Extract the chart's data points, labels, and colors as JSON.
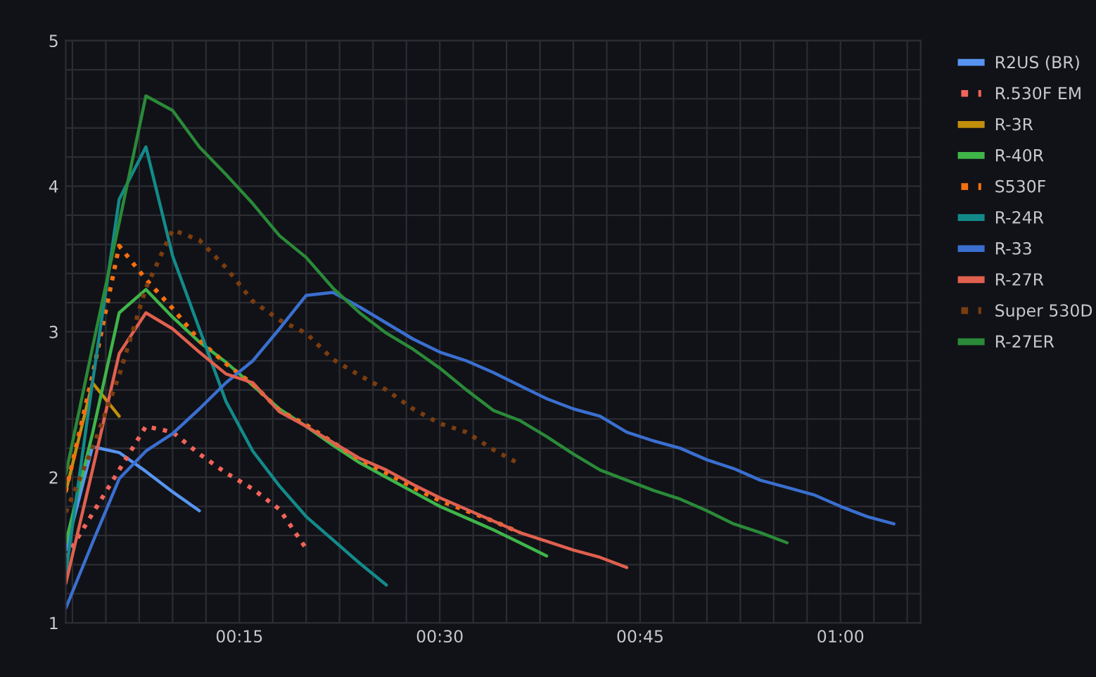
{
  "chart_data": {
    "type": "line",
    "xlim": [
      2,
      66
    ],
    "xticks": [
      {
        "value": 2.5,
        "label": null
      },
      {
        "value": 5,
        "label": null
      },
      {
        "value": 7.5,
        "label": null
      },
      {
        "value": 10,
        "label": null
      },
      {
        "value": 12.5,
        "label": null
      },
      {
        "value": 15,
        "label": "00:15"
      },
      {
        "value": 17.5,
        "label": null
      },
      {
        "value": 20,
        "label": null
      },
      {
        "value": 22.5,
        "label": null
      },
      {
        "value": 25,
        "label": null
      },
      {
        "value": 27.5,
        "label": null
      },
      {
        "value": 30,
        "label": "00:30"
      },
      {
        "value": 32.5,
        "label": null
      },
      {
        "value": 35,
        "label": null
      },
      {
        "value": 37.5,
        "label": null
      },
      {
        "value": 40,
        "label": null
      },
      {
        "value": 42.5,
        "label": null
      },
      {
        "value": 45,
        "label": "00:45"
      },
      {
        "value": 47.5,
        "label": null
      },
      {
        "value": 50,
        "label": null
      },
      {
        "value": 52.5,
        "label": null
      },
      {
        "value": 55,
        "label": null
      },
      {
        "value": 57.5,
        "label": null
      },
      {
        "value": 60,
        "label": "01:00"
      },
      {
        "value": 62.5,
        "label": null
      },
      {
        "value": 65,
        "label": null
      }
    ],
    "ylim": [
      1,
      5
    ],
    "yticks": [
      1,
      {
        "value": 1.2,
        "label": null
      },
      {
        "value": 1.4,
        "label": null
      },
      {
        "value": 1.6,
        "label": null
      },
      {
        "value": 1.8,
        "label": null
      },
      2,
      {
        "value": 2.2,
        "label": null
      },
      {
        "value": 2.4,
        "label": null
      },
      {
        "value": 2.6,
        "label": null
      },
      {
        "value": 2.8,
        "label": null
      },
      3,
      {
        "value": 3.2,
        "label": null
      },
      {
        "value": 3.4,
        "label": null
      },
      {
        "value": 3.6,
        "label": null
      },
      {
        "value": 3.8,
        "label": null
      },
      4,
      {
        "value": 4.2,
        "label": null
      },
      {
        "value": 4.4,
        "label": null
      },
      {
        "value": 4.6,
        "label": null
      },
      {
        "value": 4.8,
        "label": null
      },
      5
    ],
    "grid": true,
    "legend": "right",
    "marker": "none",
    "series": [
      {
        "name": "R2US (BR)",
        "color": "#5794f2",
        "line_style": "solid",
        "x": [
          2,
          4,
          6,
          8,
          10,
          12
        ],
        "values": [
          1.5,
          2.21,
          2.17,
          2.04,
          1.9,
          1.77
        ]
      },
      {
        "name": "R.530F EM",
        "color": "#f2645a",
        "line_style": "dotted",
        "x": [
          2,
          4,
          6,
          8,
          10,
          12,
          14,
          16,
          18,
          20
        ],
        "values": [
          1.45,
          1.75,
          2.05,
          2.35,
          2.31,
          2.16,
          2.03,
          1.92,
          1.78,
          1.51
        ]
      },
      {
        "name": "R-3R",
        "color": "#c28f0c",
        "line_style": "solid",
        "x": [
          2,
          4,
          6
        ],
        "values": [
          1.9,
          2.65,
          2.42
        ]
      },
      {
        "name": "R-40R",
        "color": "#3fb54a",
        "line_style": "solid",
        "x": [
          2,
          4,
          6,
          8,
          10,
          12,
          14,
          16,
          18,
          20,
          22,
          24,
          26,
          28,
          30,
          32,
          34,
          36,
          38
        ],
        "values": [
          1.55,
          2.3,
          3.13,
          3.29,
          3.1,
          2.93,
          2.79,
          2.63,
          2.47,
          2.35,
          2.22,
          2.1,
          2.0,
          1.9,
          1.8,
          1.72,
          1.64,
          1.55,
          1.46
        ]
      },
      {
        "name": "S530F",
        "color": "#f5700f",
        "line_style": "dotted",
        "x": [
          2,
          4,
          6,
          8,
          10,
          12,
          14,
          16,
          18,
          20,
          22,
          24,
          26,
          28,
          30,
          32,
          34,
          36
        ],
        "values": [
          1.9,
          2.7,
          3.59,
          3.36,
          3.16,
          2.94,
          2.78,
          2.64,
          2.46,
          2.36,
          2.24,
          2.12,
          2.03,
          1.93,
          1.84,
          1.77,
          1.7,
          1.62
        ]
      },
      {
        "name": "R-24R",
        "color": "#138a8a",
        "line_style": "solid",
        "x": [
          2,
          4,
          6,
          8,
          10,
          12,
          14,
          16,
          18,
          20,
          22,
          24,
          26
        ],
        "values": [
          1.34,
          2.65,
          3.91,
          4.27,
          3.52,
          3.02,
          2.52,
          2.18,
          1.94,
          1.73,
          1.57,
          1.41,
          1.26
        ]
      },
      {
        "name": "R-33",
        "color": "#3a6fd0",
        "line_style": "solid",
        "x": [
          2,
          4,
          6,
          8,
          10,
          12,
          14,
          16,
          18,
          20,
          22,
          24,
          26,
          28,
          30,
          32,
          34,
          36,
          38,
          40,
          42,
          44,
          46,
          48,
          50,
          52,
          54,
          56,
          58,
          60,
          62,
          64
        ],
        "values": [
          1.1,
          1.55,
          1.99,
          2.18,
          2.3,
          2.47,
          2.65,
          2.8,
          3.02,
          3.25,
          3.27,
          3.17,
          3.06,
          2.95,
          2.86,
          2.8,
          2.72,
          2.63,
          2.54,
          2.47,
          2.42,
          2.31,
          2.25,
          2.2,
          2.12,
          2.06,
          1.98,
          1.93,
          1.88,
          1.8,
          1.73,
          1.68
        ]
      },
      {
        "name": "R-27R",
        "color": "#e0604f",
        "line_style": "solid",
        "x": [
          2,
          4,
          6,
          8,
          10,
          12,
          14,
          16,
          18,
          20,
          22,
          24,
          26,
          28,
          30,
          32,
          34,
          36,
          38,
          40,
          42,
          44
        ],
        "values": [
          1.27,
          2.05,
          2.85,
          3.13,
          3.02,
          2.86,
          2.71,
          2.65,
          2.45,
          2.35,
          2.24,
          2.13,
          2.05,
          1.95,
          1.86,
          1.78,
          1.7,
          1.62,
          1.56,
          1.5,
          1.45,
          1.38
        ]
      },
      {
        "name": "Super 530D",
        "color": "#7a3d10",
        "line_style": "dotted",
        "x": [
          2,
          4,
          6,
          8,
          10,
          12,
          14,
          16,
          18,
          20,
          22,
          24,
          26,
          28,
          30,
          32,
          34,
          36
        ],
        "values": [
          1.76,
          2.2,
          2.7,
          3.3,
          3.7,
          3.63,
          3.44,
          3.21,
          3.08,
          2.99,
          2.81,
          2.7,
          2.6,
          2.47,
          2.37,
          2.31,
          2.19,
          2.09
        ]
      },
      {
        "name": "R-27ER",
        "color": "#2a8a38",
        "line_style": "solid",
        "x": [
          2,
          4,
          6,
          8,
          10,
          12,
          14,
          16,
          18,
          20,
          22,
          24,
          26,
          28,
          30,
          32,
          34,
          36,
          38,
          40,
          42,
          44,
          46,
          48,
          50,
          52,
          54,
          56
        ],
        "values": [
          2.02,
          2.89,
          3.75,
          4.62,
          4.52,
          4.27,
          4.08,
          3.88,
          3.66,
          3.51,
          3.3,
          3.13,
          2.99,
          2.88,
          2.75,
          2.6,
          2.46,
          2.39,
          2.28,
          2.16,
          2.05,
          1.98,
          1.91,
          1.85,
          1.77,
          1.68,
          1.62,
          1.55
        ]
      }
    ]
  }
}
